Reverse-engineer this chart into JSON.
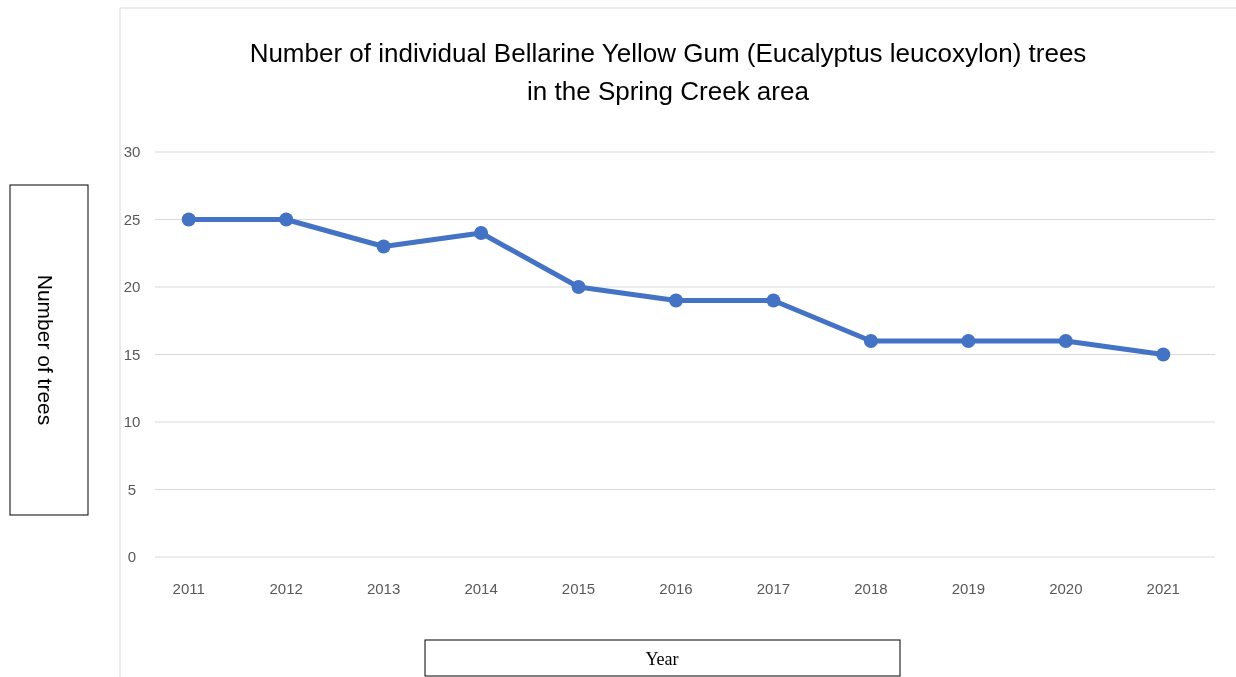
{
  "chart_data": {
    "type": "line",
    "title": "Number of individual Bellarine Yellow Gum (Eucalyptus leucoxylon) trees in the Spring Creek area",
    "xlabel": "Year",
    "ylabel": "Number of trees",
    "categories": [
      "2011",
      "2012",
      "2013",
      "2014",
      "2015",
      "2016",
      "2017",
      "2018",
      "2019",
      "2020",
      "2021"
    ],
    "series": [
      {
        "color": "#4472c4",
        "values": [
          25,
          25,
          23,
          24,
          20,
          19,
          19,
          16,
          16,
          16,
          15
        ]
      }
    ],
    "ylim": [
      0,
      30
    ],
    "yticks": [
      0,
      5,
      10,
      15,
      20,
      25,
      30
    ],
    "grid": "y",
    "marker": "circle",
    "line_style": "solid"
  }
}
